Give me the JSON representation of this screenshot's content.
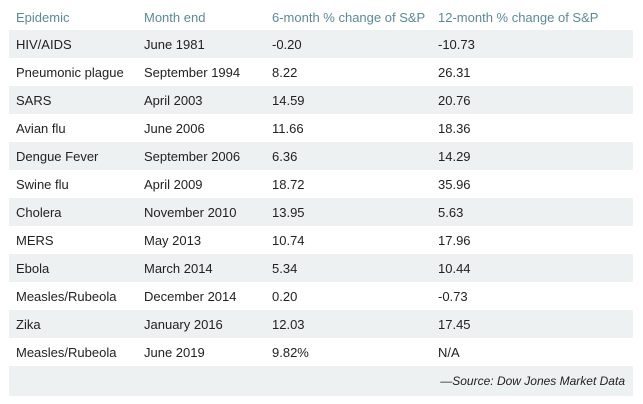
{
  "headers": [
    "Epidemic",
    "Month end",
    "6-month % change of S&P",
    "12-month % change of S&P"
  ],
  "rows": [
    [
      "HIV/AIDS",
      "June 1981",
      "-0.20",
      "-10.73"
    ],
    [
      "Pneumonic plague",
      "September 1994",
      "8.22",
      "26.31"
    ],
    [
      "SARS",
      "April 2003",
      "14.59",
      "20.76"
    ],
    [
      "Avian flu",
      "June 2006",
      "11.66",
      "18.36"
    ],
    [
      "Dengue Fever",
      "September 2006",
      "6.36",
      "14.29"
    ],
    [
      "Swine flu",
      "April 2009",
      "18.72",
      "35.96"
    ],
    [
      "Cholera",
      "November 2010",
      "13.95",
      "5.63"
    ],
    [
      "MERS",
      "May 2013",
      "10.74",
      "17.96"
    ],
    [
      "Ebola",
      "March 2014",
      "5.34",
      "10.44"
    ],
    [
      "Measles/Rubeola",
      "December 2014",
      "0.20",
      "-0.73"
    ],
    [
      "Zika",
      "January 2016",
      "12.03",
      "17.45"
    ],
    [
      "Measles/Rubeola",
      "June 2019",
      "9.82%",
      "N/A"
    ]
  ],
  "source": "—Source: Dow Jones Market Data",
  "colors": {
    "header_text": "#5b8a96",
    "stripe": "#eef1f1",
    "body_text": "#222222"
  }
}
